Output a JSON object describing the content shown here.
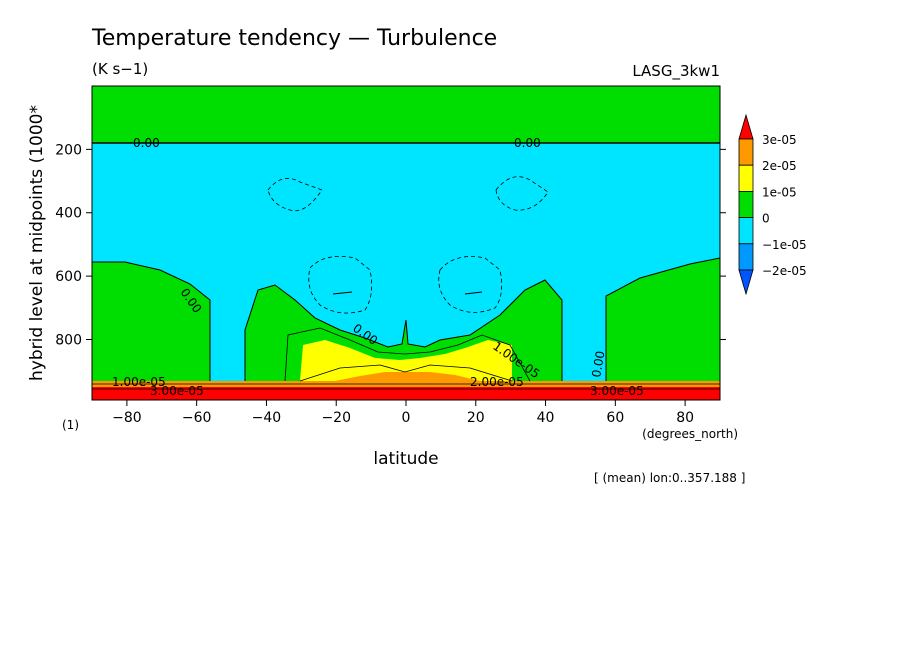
{
  "chart_data": {
    "type": "heatmap",
    "title": "Temperature tendency — Turbulence",
    "units": "(K s−1)",
    "dataset": "LASG_3kw1",
    "xlabel": "latitude",
    "x_units": "(degrees_north)",
    "ylabel": "hybrid level at midpoints (1000*",
    "y_units": "(1)",
    "note": "[ (mean) lon:0..357.188 ]",
    "xlim": [
      -90,
      90
    ],
    "ylim": [
      991,
      0
    ],
    "y_inverted": true,
    "x_ticks": [
      -80,
      -60,
      -40,
      -20,
      0,
      20,
      40,
      60,
      80
    ],
    "y_ticks": [
      200,
      400,
      600,
      800
    ],
    "colorbar": {
      "labels": [
        "3e-05",
        "2e-05",
        "1e-05",
        "0",
        "−1e-05",
        "−2e-05"
      ],
      "colors": [
        "#ff0000",
        "#ff9900",
        "#ffff00",
        "#00dd00",
        "#00e5ff",
        "#0099ff",
        "#0055ff"
      ]
    },
    "fill_colors": {
      "positive_small": "#00dd00",
      "negative_small": "#00e5ff",
      "mid_positive": "#ffff00",
      "high_positive": "#ff9900",
      "max_positive": "#ff0000"
    },
    "contour_labels": [
      "0.00",
      "0.00",
      "0.00",
      "0.00",
      "0.00",
      "1.00e-05",
      "1.00e-05",
      "2.00e-05",
      "3.00e-05",
      "3.00e-05"
    ]
  }
}
